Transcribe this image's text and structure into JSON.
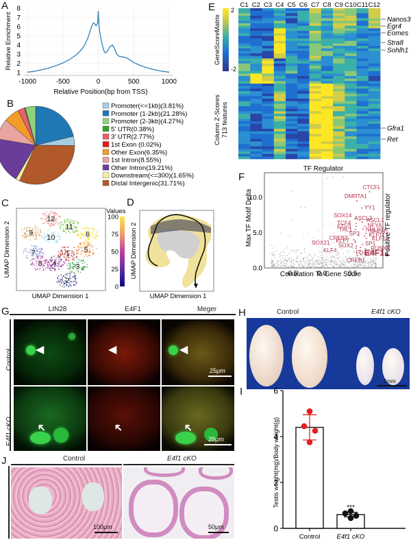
{
  "figure": {
    "panel_labels": [
      "A",
      "B",
      "C",
      "D",
      "E",
      "F",
      "G",
      "H",
      "I",
      "J"
    ]
  },
  "chart_data": [
    {
      "id": "A",
      "type": "line",
      "title": "",
      "xlabel": "Relative Position(bp from TSS)",
      "ylabel": "Relative Enrichment",
      "xlim": [
        -1050,
        1050
      ],
      "ylim": [
        0.7,
        8
      ],
      "xticks": [
        -1000,
        -500,
        0,
        500,
        1000
      ],
      "yticks": [
        1,
        2,
        3,
        4,
        5,
        6,
        7,
        8
      ],
      "grid": true,
      "color": "#2f7fb8",
      "x": [
        -1000,
        -900,
        -800,
        -700,
        -600,
        -500,
        -400,
        -300,
        -250,
        -200,
        -150,
        -100,
        -70,
        -50,
        -30,
        -10,
        0,
        10,
        20,
        40,
        60,
        80,
        100,
        130,
        160,
        200,
        230,
        260,
        300,
        350,
        400,
        450,
        500,
        600,
        700,
        800,
        900,
        1000
      ],
      "y": [
        1.05,
        1.15,
        1.3,
        1.5,
        1.75,
        2.05,
        2.45,
        3.0,
        3.4,
        3.9,
        4.7,
        5.9,
        6.4,
        6.3,
        6.1,
        6.4,
        7.7,
        6.1,
        5.4,
        4.6,
        3.9,
        3.35,
        3.15,
        3.3,
        3.8,
        4.0,
        3.6,
        3.0,
        2.75,
        2.7,
        2.6,
        2.35,
        2.1,
        1.75,
        1.5,
        1.3,
        1.15,
        1.05
      ]
    },
    {
      "id": "B",
      "type": "pie",
      "title": "",
      "labels": [
        "Promoter(<=1kb)(3.81%)",
        "Promoter (1-2kb)(21.28%)",
        "Promoter (2-3kb)(4.27%)",
        "5' UTR(0.38%)",
        "3' UTR(2.77%)",
        "1st Exon (0.02%)",
        "Other Exon(6.35%)",
        "1st Intron(8.55%)",
        "Other Intron(19.21%)",
        "Downstream(<=300)(1.65%)",
        "Distal Intergenic(31.71%)"
      ],
      "values": [
        3.81,
        21.28,
        4.27,
        0.38,
        2.77,
        0.02,
        6.35,
        8.55,
        19.21,
        1.65,
        31.71
      ],
      "colors": [
        "#a6cee3",
        "#1f78b4",
        "#8fd17c",
        "#33a02c",
        "#e8606a",
        "#e31a1c",
        "#f39c28",
        "#e7a4a0",
        "#6a3d9a",
        "#f4eea0",
        "#b15928"
      ],
      "slice_order_clockwise_from_top": [
        1,
        0,
        10,
        9,
        8,
        7,
        6,
        5,
        4,
        3,
        2
      ],
      "legend": "right"
    },
    {
      "id": "C",
      "type": "scatter",
      "title": "",
      "xlabel": "UMAP Dimension 1",
      "ylabel": "UMAP Dimension 2",
      "clusters": [
        {
          "name": "1",
          "color": "#c23b3b",
          "cx": 0.58,
          "cy": 0.55
        },
        {
          "name": "2",
          "color": "#2a3a8a",
          "cx": 0.58,
          "cy": 0.9
        },
        {
          "name": "3",
          "color": "#3aa04a",
          "cx": 0.7,
          "cy": 0.72
        },
        {
          "name": "4",
          "color": "#7a1f8a",
          "cx": 0.42,
          "cy": 0.68
        },
        {
          "name": "5",
          "color": "#f0882a",
          "cx": 0.8,
          "cy": 0.5
        },
        {
          "name": "6",
          "color": "#f5df20",
          "cx": 0.82,
          "cy": 0.3
        },
        {
          "name": "7",
          "color": "#7f95cc",
          "cx": 0.17,
          "cy": 0.54
        },
        {
          "name": "8",
          "color": "#cc55b0",
          "cx": 0.25,
          "cy": 0.68
        },
        {
          "name": "9",
          "color": "#d4a060",
          "cx": 0.14,
          "cy": 0.28
        },
        {
          "name": "10",
          "color": "#a8e0ef",
          "cx": 0.38,
          "cy": 0.34
        },
        {
          "name": "11",
          "color": "#70c040",
          "cx": 0.6,
          "cy": 0.2
        },
        {
          "name": "12",
          "color": "#ef7d80",
          "cx": 0.38,
          "cy": 0.1
        }
      ],
      "colorbar": {
        "title": "Values",
        "ticks": [
          0,
          25,
          50,
          75,
          100
        ]
      }
    },
    {
      "id": "D",
      "type": "scatter",
      "title": "",
      "xlabel": "UMAP Dimension 1",
      "ylabel": "UMAP Dimension 2",
      "description": "trajectory overlay on UMAP, pseudotime 0-100"
    },
    {
      "id": "E",
      "type": "heatmap",
      "title": "",
      "ylabel": "Column Z-Scores\n713 features",
      "colorbar_title": "GeneScoreMatrix",
      "colorbar_range": [
        -2,
        2
      ],
      "columns": [
        "C1",
        "C2",
        "C3",
        "C4",
        "C5",
        "C6",
        "C7",
        "C8",
        "C9",
        "C10",
        "C11",
        "C12"
      ],
      "row_annotations": [
        "Nanos3",
        "Egr4",
        "Eomes",
        "Stra8",
        "Sohlh1",
        "Gfra1",
        "Ret"
      ]
    },
    {
      "id": "F",
      "type": "scatter",
      "title": "TF Regulator",
      "xlabel": "Correlation To Gene Score",
      "ylabel": "Max TF Motif Delta",
      "xlim": [
        -0.95,
        1.0
      ],
      "ylim": [
        0,
        13.5
      ],
      "xticks": [
        -0.5,
        0.0,
        0.5
      ],
      "yticks": [
        0.0,
        5.0,
        10.0
      ],
      "legend": "Positive TF regulator",
      "highlight_color": "#b5334f",
      "labeled_points": [
        {
          "label": "CTCFL",
          "x": 0.78,
          "y": 10.8
        },
        {
          "label": "DMRTA1",
          "x": 0.57,
          "y": 9.5
        },
        {
          "label": "YY1",
          "x": 0.65,
          "y": 8.5
        },
        {
          "label": "SOX14",
          "x": 0.55,
          "y": 7.0
        },
        {
          "label": "ASCL2",
          "x": 0.62,
          "y": 6.8
        },
        {
          "label": "ASCL1",
          "x": 0.66,
          "y": 6.5
        },
        {
          "label": "TCF4",
          "x": 0.56,
          "y": 6.3
        },
        {
          "label": "ETV3",
          "x": 0.56,
          "y": 5.9
        },
        {
          "label": "NFYA",
          "x": 0.7,
          "y": 5.9
        },
        {
          "label": "TAL1",
          "x": 0.55,
          "y": 5.5
        },
        {
          "label": "NHLH2",
          "x": 0.67,
          "y": 5.5
        },
        {
          "label": "NHLH1",
          "x": 0.72,
          "y": 4.9
        },
        {
          "label": "SP3",
          "x": 0.6,
          "y": 4.6
        },
        {
          "label": "KLF11",
          "x": 0.7,
          "y": 4.5
        },
        {
          "label": "KLF10",
          "x": 0.73,
          "y": 4.2
        },
        {
          "label": "CREB3",
          "x": 0.52,
          "y": 4.0
        },
        {
          "label": "KLF7",
          "x": 0.54,
          "y": 3.8
        },
        {
          "label": "SOX21",
          "x": 0.55,
          "y": 3.6
        },
        {
          "label": "SP1",
          "x": 0.66,
          "y": 3.3
        },
        {
          "label": "SOX2",
          "x": 0.56,
          "y": 3.1
        },
        {
          "label": "RUNX1",
          "x": 0.71,
          "y": 2.7
        },
        {
          "label": "KLF4",
          "x": 0.56,
          "y": 2.8
        },
        {
          "label": "FOXO3",
          "x": 0.62,
          "y": 2.5
        },
        {
          "label": "E4F1",
          "x": 0.63,
          "y": 2.9
        },
        {
          "label": "CREB1",
          "x": 0.58,
          "y": 1.8
        }
      ]
    },
    {
      "id": "I",
      "type": "bar",
      "title": "",
      "categories": [
        "Control",
        "E4f1 cKO"
      ],
      "values": [
        4.4,
        0.6
      ],
      "error": [
        0.55,
        0.1
      ],
      "points": [
        [
          5.1,
          4.45,
          4.25,
          3.75
        ],
        [
          0.75,
          0.65,
          0.55,
          0.45
        ]
      ],
      "point_colors": [
        "#e02020",
        "#111111"
      ],
      "significance": "***",
      "xlabel": "",
      "ylabel": "Testis weight(mg)/Body weight(g)",
      "ylim": [
        0,
        6
      ],
      "yticks": [
        0,
        2,
        4,
        6
      ]
    }
  ],
  "panelG": {
    "columns": [
      "LIN28",
      "E4F1",
      "Meger"
    ],
    "rows": [
      "Control",
      "E4f1 cKO"
    ],
    "scale_bar": "25μm"
  },
  "panelH": {
    "labels": [
      "Control",
      "E4f1 cKO"
    ],
    "scale_bar": "4mm"
  },
  "panelJ": {
    "labels": [
      "Control",
      "E4f1 cKO"
    ],
    "scale_bars": [
      "100μm",
      "50μm"
    ]
  }
}
